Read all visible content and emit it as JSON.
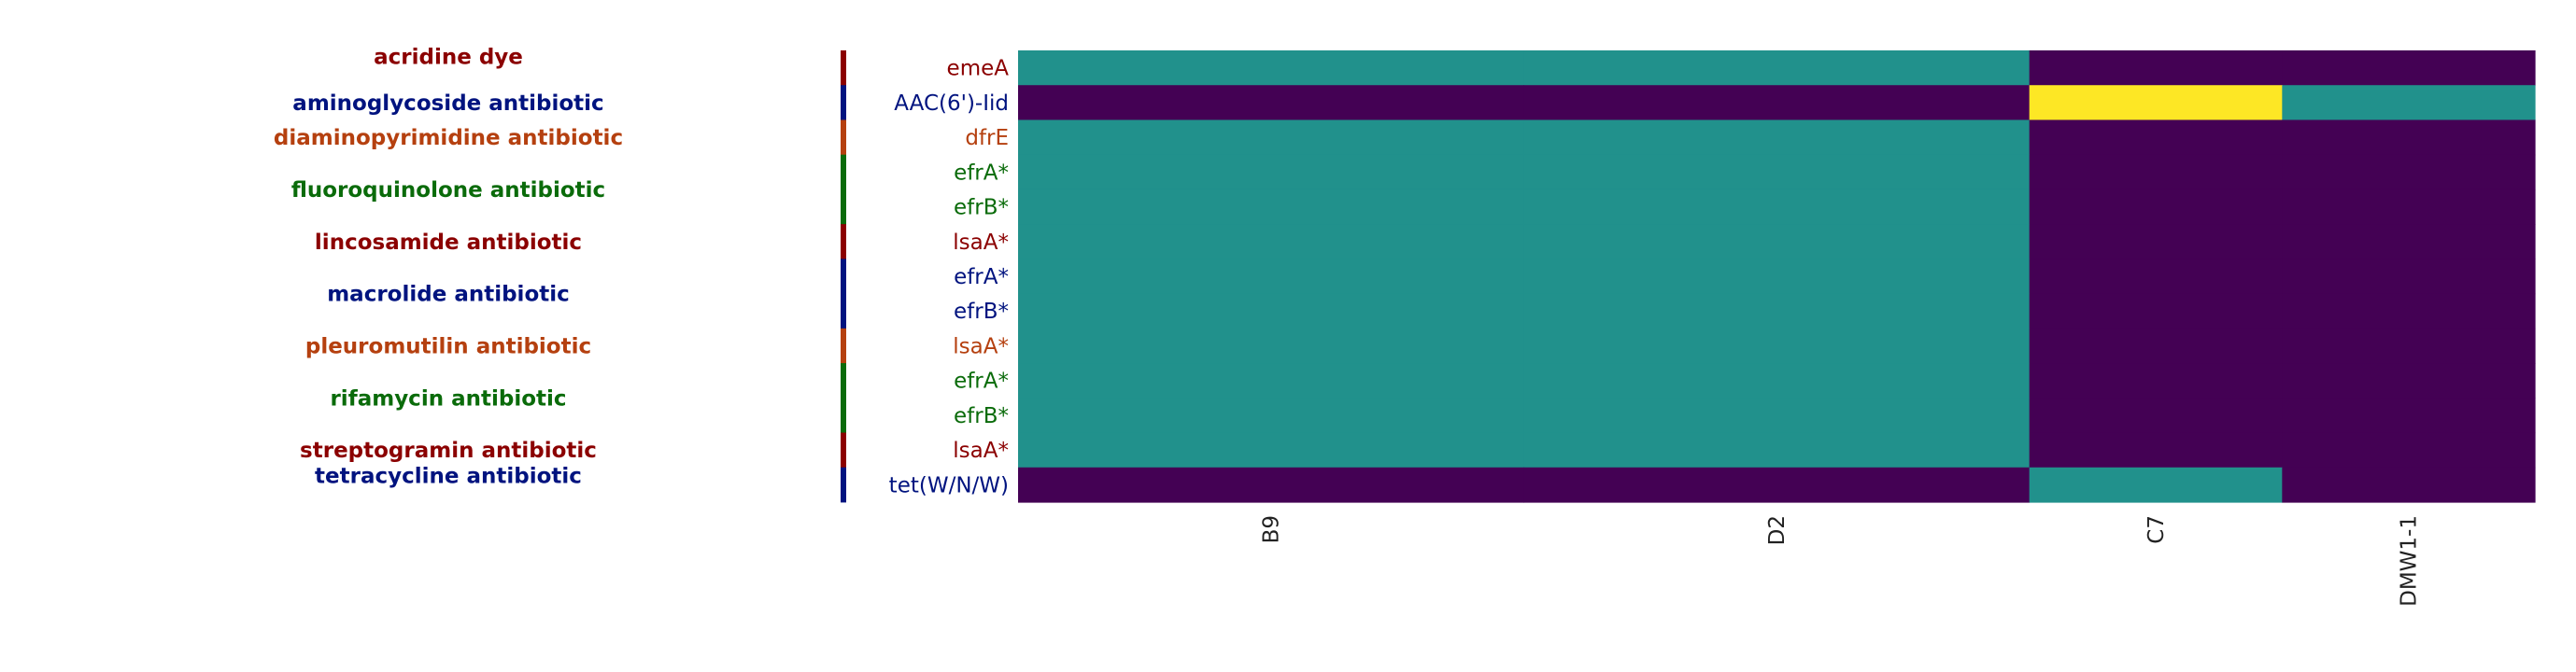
{
  "chart_data": {
    "type": "heatmap",
    "columns": [
      "B9",
      "D2",
      "C7",
      "DMW1-1"
    ],
    "column_spans": [
      2,
      2,
      1,
      1
    ],
    "rows": [
      {
        "label": "emeA",
        "class": "acridine dye",
        "values": [
          1,
          1,
          0,
          0
        ]
      },
      {
        "label": "AAC(6')-Iid",
        "class": "aminoglycoside antibiotic",
        "values": [
          0,
          0,
          2,
          1
        ]
      },
      {
        "label": "dfrE",
        "class": "diaminopyrimidine antibiotic",
        "values": [
          1,
          1,
          0,
          0
        ]
      },
      {
        "label": "efrA*",
        "class": "fluoroquinolone antibiotic",
        "values": [
          1,
          1,
          0,
          0
        ]
      },
      {
        "label": "efrB*",
        "class": "fluoroquinolone antibiotic",
        "values": [
          1,
          1,
          0,
          0
        ]
      },
      {
        "label": "lsaA*",
        "class": "lincosamide antibiotic",
        "values": [
          1,
          1,
          0,
          0
        ]
      },
      {
        "label": "efrA*",
        "class": "macrolide antibiotic",
        "values": [
          1,
          1,
          0,
          0
        ]
      },
      {
        "label": "efrB*",
        "class": "macrolide antibiotic",
        "values": [
          1,
          1,
          0,
          0
        ]
      },
      {
        "label": "lsaA*",
        "class": "pleuromutilin antibiotic",
        "values": [
          1,
          1,
          0,
          0
        ]
      },
      {
        "label": "efrA*",
        "class": "rifamycin antibiotic",
        "values": [
          1,
          1,
          0,
          0
        ]
      },
      {
        "label": "efrB*",
        "class": "rifamycin antibiotic",
        "values": [
          1,
          1,
          0,
          0
        ]
      },
      {
        "label": "lsaA*",
        "class": "streptogramin antibiotic",
        "values": [
          1,
          1,
          0,
          0
        ]
      },
      {
        "label": "tet(W/N/W)",
        "class": "tetracycline antibiotic",
        "values": [
          0,
          0,
          1,
          0
        ]
      }
    ],
    "classes": [
      {
        "name": "acridine dye",
        "color": "#8b0000"
      },
      {
        "name": "aminoglycoside antibiotic",
        "color": "#00137f"
      },
      {
        "name": "diaminopyrimidine antibiotic",
        "color": "#b5400f"
      },
      {
        "name": "fluoroquinolone antibiotic",
        "color": "#0a6b0a"
      },
      {
        "name": "lincosamide antibiotic",
        "color": "#8b0000"
      },
      {
        "name": "macrolide antibiotic",
        "color": "#00137f"
      },
      {
        "name": "pleuromutilin antibiotic",
        "color": "#b5400f"
      },
      {
        "name": "rifamycin antibiotic",
        "color": "#0a6b0a"
      },
      {
        "name": "streptogramin antibiotic",
        "color": "#8b0000"
      },
      {
        "name": "tetracycline antibiotic",
        "color": "#00137f"
      }
    ],
    "colormap": "viridis",
    "value_colors": {
      "0": "#440154",
      "1": "#21918c",
      "2": "#fde725"
    },
    "colorbar": false,
    "grid": false,
    "legend": "left"
  }
}
